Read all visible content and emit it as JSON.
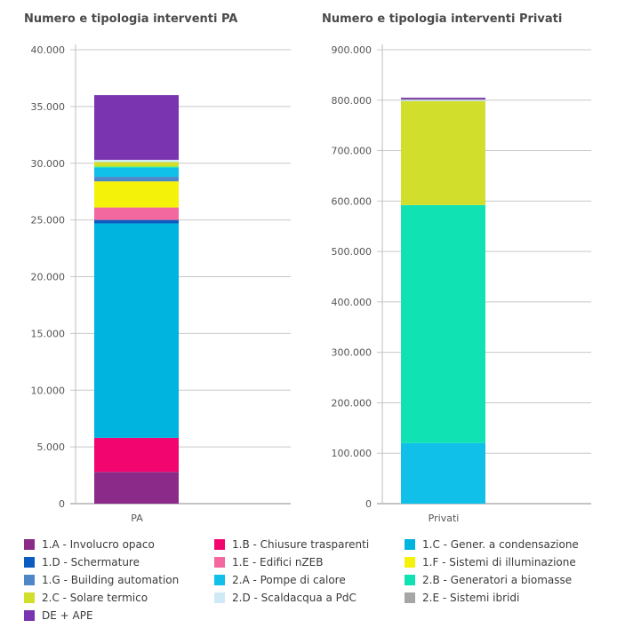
{
  "chart_data": [
    {
      "type": "bar",
      "stacked": true,
      "title": "Numero e tipologia interventi PA",
      "categories": [
        "PA"
      ],
      "ylim": [
        0,
        40000
      ],
      "yticks": [
        0,
        5000,
        10000,
        15000,
        20000,
        25000,
        30000,
        35000,
        40000
      ],
      "ytick_labels": [
        "0",
        "5.000",
        "10.000",
        "15.000",
        "20.000",
        "25.000",
        "30.000",
        "35.000",
        "40.000"
      ],
      "series": [
        {
          "name": "1.A - Involucro opaco",
          "values": [
            2800
          ]
        },
        {
          "name": "1.B - Chiusure trasparenti",
          "values": [
            3000
          ]
        },
        {
          "name": "1.C - Gener. a condensazione",
          "values": [
            18900
          ]
        },
        {
          "name": "1.D - Schermature",
          "values": [
            300
          ]
        },
        {
          "name": "1.E - Edifici nZEB",
          "values": [
            1100
          ]
        },
        {
          "name": "1.F - Sistemi di illuminazione",
          "values": [
            2300
          ]
        },
        {
          "name": "1.G - Building automation",
          "values": [
            400
          ]
        },
        {
          "name": "2.A - Pompe di calore",
          "values": [
            800
          ]
        },
        {
          "name": "2.B - Generatori a biomasse",
          "values": [
            100
          ]
        },
        {
          "name": "2.C - Solare termico",
          "values": [
            400
          ]
        },
        {
          "name": "2.D - Scaldacqua a PdC",
          "values": [
            200
          ]
        },
        {
          "name": "2.E - Sistemi ibridi",
          "values": [
            0
          ]
        },
        {
          "name": "DE + APE",
          "values": [
            5700
          ]
        }
      ]
    },
    {
      "type": "bar",
      "stacked": true,
      "title": "Numero e tipologia interventi Privati",
      "categories": [
        "Privati"
      ],
      "ylim": [
        0,
        900000
      ],
      "yticks": [
        0,
        100000,
        200000,
        300000,
        400000,
        500000,
        600000,
        700000,
        800000,
        900000
      ],
      "ytick_labels": [
        "0",
        "100.000",
        "200.000",
        "300.000",
        "400.000",
        "500.000",
        "600.000",
        "700.000",
        "800.000",
        "900.000"
      ],
      "series": [
        {
          "name": "1.A - Involucro opaco",
          "values": [
            0
          ]
        },
        {
          "name": "1.B - Chiusure trasparenti",
          "values": [
            0
          ]
        },
        {
          "name": "1.C - Gener. a condensazione",
          "values": [
            0
          ]
        },
        {
          "name": "1.D - Schermature",
          "values": [
            0
          ]
        },
        {
          "name": "1.E - Edifici nZEB",
          "values": [
            0
          ]
        },
        {
          "name": "1.F - Sistemi di illuminazione",
          "values": [
            0
          ]
        },
        {
          "name": "1.G - Building automation",
          "values": [
            0
          ]
        },
        {
          "name": "2.A - Pompe di calore",
          "values": [
            120000
          ]
        },
        {
          "name": "2.B - Generatori a biomasse",
          "values": [
            472000
          ]
        },
        {
          "name": "2.C - Solare termico",
          "values": [
            206000
          ]
        },
        {
          "name": "2.D - Scaldacqua a PdC",
          "values": [
            2000
          ]
        },
        {
          "name": "2.E - Sistemi ibridi",
          "values": [
            2000
          ]
        },
        {
          "name": "DE + APE",
          "values": [
            3000
          ]
        }
      ]
    }
  ],
  "legend": [
    {
      "label": "1.A - Involucro opaco",
      "color": "#8b2a88"
    },
    {
      "label": "1.B - Chiusure trasparenti",
      "color": "#f2056f"
    },
    {
      "label": "1.C - Gener. a condensazione",
      "color": "#00b4e0"
    },
    {
      "label": "1.D - Schermature",
      "color": "#0a5cc0"
    },
    {
      "label": "1.E - Edifici nZEB",
      "color": "#f2689f"
    },
    {
      "label": "1.F - Sistemi di illuminazione",
      "color": "#f5f20a"
    },
    {
      "label": "1.G - Building automation",
      "color": "#4e86c8"
    },
    {
      "label": "2.A - Pompe di calore",
      "color": "#10c0e8"
    },
    {
      "label": "2.B - Generatori a biomasse",
      "color": "#10e2b4"
    },
    {
      "label": "2.C - Solare termico",
      "color": "#d2de2c"
    },
    {
      "label": "2.D - Scaldacqua a PdC",
      "color": "#cfeaf6"
    },
    {
      "label": "2.E - Sistemi ibridi",
      "color": "#a6a6a6"
    },
    {
      "label": "DE + APE",
      "color": "#7a34b0"
    }
  ]
}
